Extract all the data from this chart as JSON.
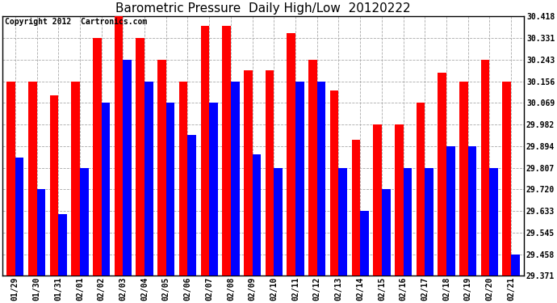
{
  "title": "Barometric Pressure  Daily High/Low  20120222",
  "copyright_text": "Copyright 2012  Cartronics.com",
  "dates": [
    "01/29",
    "01/30",
    "01/31",
    "02/01",
    "02/02",
    "02/03",
    "02/04",
    "02/05",
    "02/06",
    "02/07",
    "02/08",
    "02/09",
    "02/10",
    "02/11",
    "02/12",
    "02/13",
    "02/14",
    "02/15",
    "02/16",
    "02/17",
    "02/18",
    "02/19",
    "02/20",
    "02/21"
  ],
  "highs": [
    30.156,
    30.156,
    30.1,
    30.156,
    30.331,
    30.418,
    30.331,
    30.243,
    30.156,
    30.38,
    30.38,
    30.2,
    30.2,
    30.35,
    30.243,
    30.12,
    29.92,
    29.982,
    29.982,
    30.069,
    30.19,
    30.156,
    30.243,
    30.156
  ],
  "lows": [
    29.85,
    29.72,
    29.62,
    29.807,
    30.069,
    30.243,
    30.156,
    30.069,
    29.94,
    30.069,
    30.156,
    29.86,
    29.807,
    30.156,
    30.156,
    29.807,
    29.633,
    29.72,
    29.807,
    29.807,
    29.894,
    29.894,
    29.807,
    29.458
  ],
  "high_color": "#ff0000",
  "low_color": "#0000ff",
  "bg_color": "#ffffff",
  "grid_color": "#aaaaaa",
  "yticks": [
    29.371,
    29.458,
    29.545,
    29.633,
    29.72,
    29.807,
    29.894,
    29.982,
    30.069,
    30.156,
    30.243,
    30.331,
    30.418
  ],
  "ymin": 29.371,
  "ymax": 30.418,
  "title_fontsize": 11,
  "copyright_fontsize": 7
}
